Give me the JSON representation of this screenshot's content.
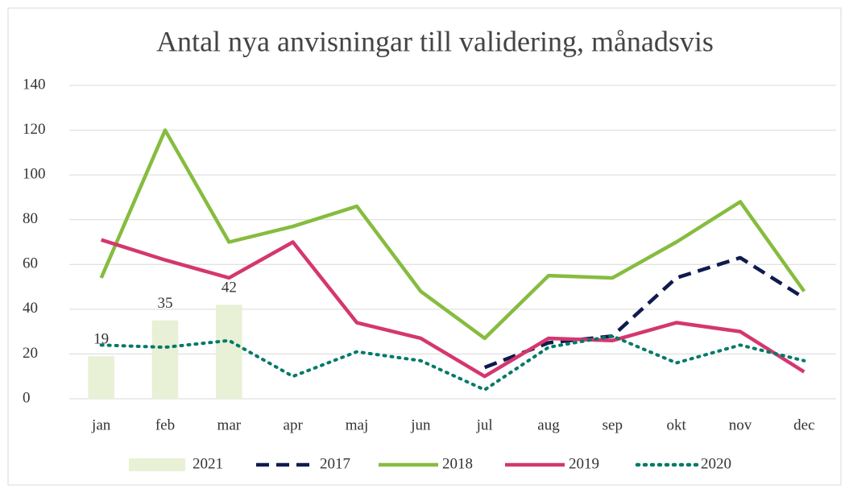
{
  "chart_data": {
    "type": "combo",
    "title": "Antal nya anvisningar till validering, månadsvis",
    "categories": [
      "jan",
      "feb",
      "mar",
      "apr",
      "maj",
      "jun",
      "jul",
      "aug",
      "sep",
      "okt",
      "nov",
      "dec"
    ],
    "series": [
      {
        "name": "2021",
        "type": "bar",
        "color": "#e8f0d6",
        "values": [
          19,
          35,
          42,
          null,
          null,
          null,
          null,
          null,
          null,
          null,
          null,
          null
        ],
        "show_labels": true
      },
      {
        "name": "2017",
        "type": "line",
        "dash": "dashed",
        "color": "#0f1a4e",
        "values": [
          null,
          null,
          null,
          null,
          null,
          null,
          14,
          25,
          28,
          54,
          63,
          45
        ]
      },
      {
        "name": "2018",
        "type": "line",
        "dash": "solid",
        "color": "#86bc3f",
        "values": [
          54,
          120,
          70,
          77,
          86,
          48,
          27,
          55,
          54,
          70,
          88,
          48
        ]
      },
      {
        "name": "2019",
        "type": "line",
        "dash": "solid",
        "color": "#d4376f",
        "values": [
          71,
          62,
          54,
          70,
          34,
          27,
          10,
          27,
          26,
          34,
          30,
          12
        ]
      },
      {
        "name": "2020",
        "type": "line",
        "dash": "dotted",
        "color": "#007a68",
        "values": [
          24,
          23,
          26,
          10,
          21,
          17,
          4,
          23,
          28,
          16,
          24,
          17
        ]
      }
    ],
    "ylim": [
      0,
      140
    ],
    "yticks": [
      0,
      20,
      40,
      60,
      80,
      100,
      120,
      140
    ],
    "grid": true,
    "legend": "bottom"
  }
}
